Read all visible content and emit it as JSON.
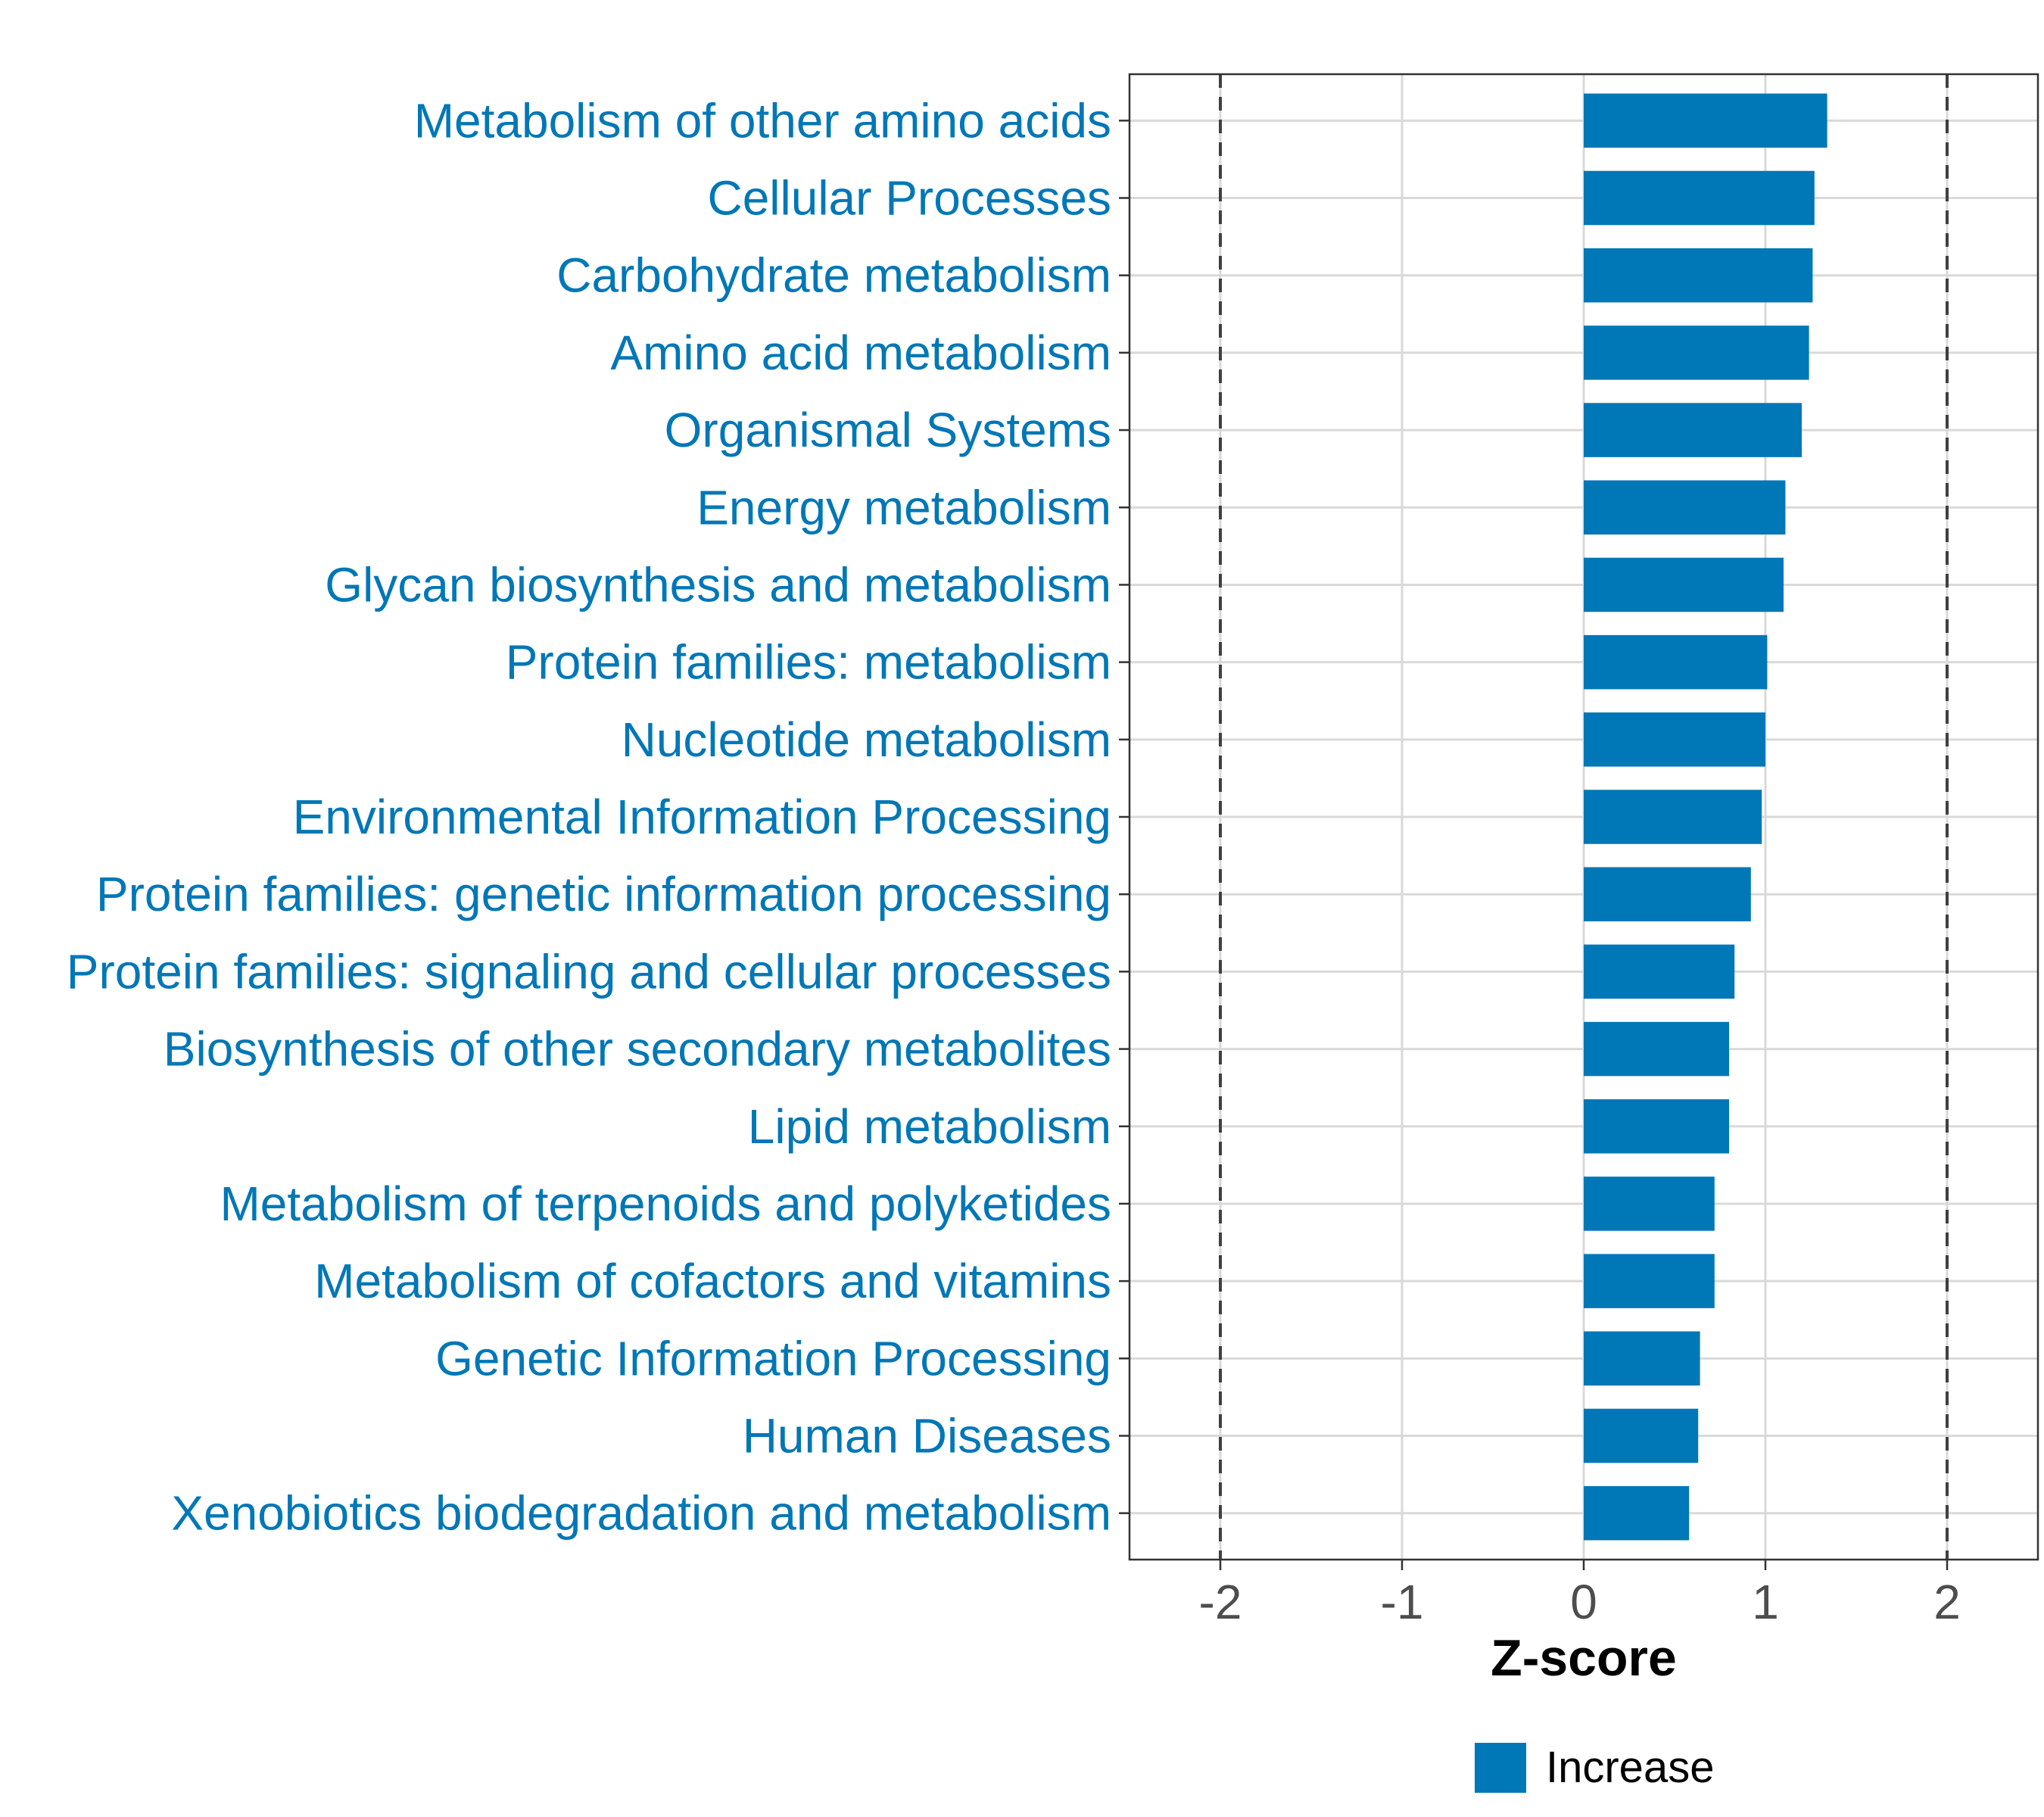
{
  "chart_data": {
    "type": "bar",
    "orientation": "horizontal",
    "title": "",
    "xlabel": "Z-score",
    "ylabel": "",
    "xlim": [
      -2.5,
      2.5
    ],
    "xticks": [
      -2,
      -1,
      0,
      1,
      2
    ],
    "xtick_labels": [
      "-2",
      "-1",
      "0",
      "1",
      "2"
    ],
    "reference_lines": [
      -2,
      2
    ],
    "grid": true,
    "categories": [
      "Metabolism of other amino acids",
      "Cellular Processes",
      "Carbohydrate metabolism",
      "Amino acid metabolism",
      "Organismal Systems",
      "Energy metabolism",
      "Glycan biosynthesis and metabolism",
      "Protein families: metabolism",
      "Nucleotide metabolism",
      "Environmental Information Processing",
      "Protein families: genetic information processing",
      "Protein families: signaling and cellular processes",
      "Biosynthesis of other secondary metabolites",
      "Lipid metabolism",
      "Metabolism of terpenoids and polyketides",
      "Metabolism of cofactors and vitamins",
      "Genetic Information Processing",
      "Human Diseases",
      "Xenobiotics biodegradation and metabolism"
    ],
    "values": [
      1.34,
      1.27,
      1.26,
      1.24,
      1.2,
      1.11,
      1.1,
      1.01,
      1.0,
      0.98,
      0.92,
      0.83,
      0.8,
      0.8,
      0.72,
      0.72,
      0.64,
      0.63,
      0.58
    ],
    "legend": [
      {
        "label": "Increase",
        "color": "#0077b6"
      }
    ],
    "legend_position": "bottom",
    "colors": {
      "bar": "#0077b6",
      "label": "#0077b6",
      "grid": "#d9d9d9",
      "ref_line": "#404040"
    }
  }
}
